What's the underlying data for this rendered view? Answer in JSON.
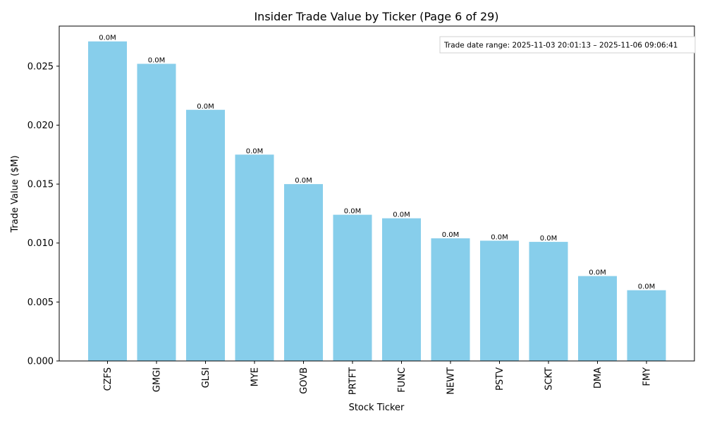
{
  "chart_data": {
    "type": "bar",
    "title": "Insider Trade Value by Ticker (Page 6 of 29)",
    "xlabel": "Stock Ticker",
    "ylabel": "Trade Value ($M)",
    "ylim": [
      0,
      0.0284
    ],
    "yticks": [
      "0.000",
      "0.005",
      "0.010",
      "0.015",
      "0.020",
      "0.025"
    ],
    "ytick_values": [
      0,
      0.005,
      0.01,
      0.015,
      0.02,
      0.025
    ],
    "categories": [
      "CZFS",
      "GMGI",
      "GLSI",
      "MYE",
      "GOVB",
      "PRTFT",
      "FUNC",
      "NEWT",
      "PSTV",
      "SCKT",
      "DMA",
      "FMY"
    ],
    "values": [
      0.0271,
      0.0252,
      0.0213,
      0.0175,
      0.015,
      0.0124,
      0.0121,
      0.0104,
      0.0102,
      0.0101,
      0.0072,
      0.006
    ],
    "data_labels": [
      "0.0M",
      "0.0M",
      "0.0M",
      "0.0M",
      "0.0M",
      "0.0M",
      "0.0M",
      "0.0M",
      "0.0M",
      "0.0M",
      "0.0M",
      "0.0M"
    ],
    "bar_color": "#87ceeb",
    "annotation": "Trade date range: 2025-11-03 20:01:13 – 2025-11-06 09:06:41",
    "legend": "none",
    "grid": false
  }
}
